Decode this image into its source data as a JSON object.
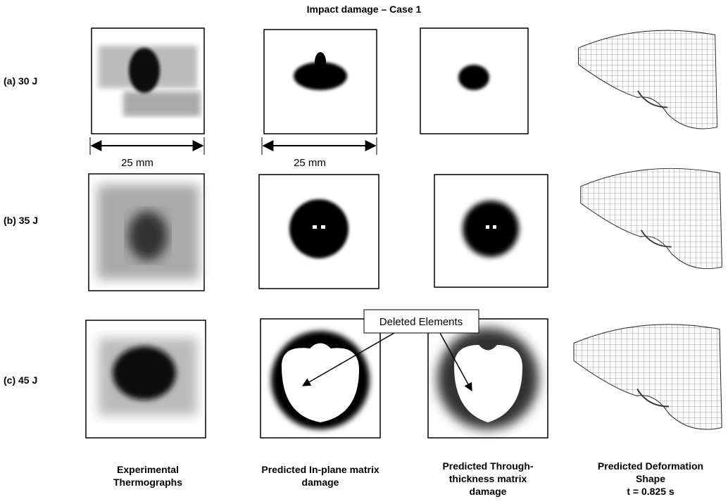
{
  "title": "Impact damage – Case 1",
  "rows": [
    "(a) 30 J",
    "(b) 35 J",
    "(c) 45 J"
  ],
  "scale_labels": [
    "25 mm",
    "25 mm"
  ],
  "callout": "Deleted Elements",
  "columns": [
    [
      "Experimental",
      "Thermographs"
    ],
    [
      "Predicted In-plane matrix",
      "damage"
    ],
    [
      "Predicted Through-",
      "thickness matrix",
      "damage"
    ],
    [
      "Predicted Deformation",
      "Shape",
      "t = 0.825 s"
    ]
  ]
}
